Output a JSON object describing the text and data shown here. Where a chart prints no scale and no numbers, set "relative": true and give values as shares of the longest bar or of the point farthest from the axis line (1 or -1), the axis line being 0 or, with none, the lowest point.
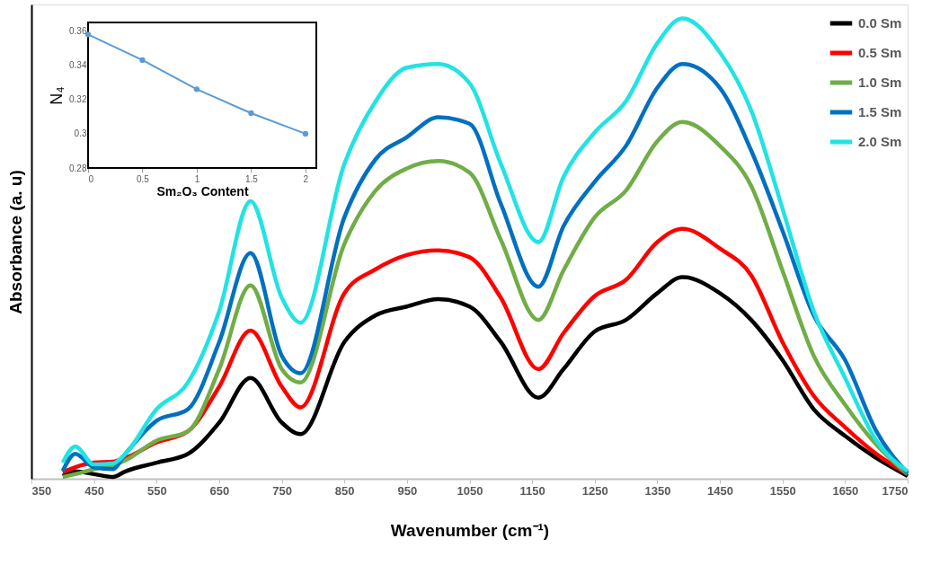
{
  "chart_data": [
    {
      "type": "line",
      "xlabel": "Wavenumber (cm⁻¹)",
      "ylabel": "Absorbance (a. u)",
      "relative": true,
      "legend": "top right",
      "marker": "none",
      "grid": false,
      "x": [
        400,
        420,
        450,
        480,
        500,
        550,
        600,
        650,
        700,
        750,
        780,
        850,
        900,
        950,
        1000,
        1050,
        1100,
        1160,
        1200,
        1250,
        1300,
        1350,
        1390,
        1450,
        1500,
        1550,
        1600,
        1650,
        1700,
        1750
      ],
      "xlim": [
        350,
        1750
      ],
      "xticks": [
        350,
        450,
        550,
        650,
        750,
        850,
        950,
        1050,
        1150,
        1250,
        1350,
        1450,
        1550,
        1650,
        1750
      ],
      "series": [
        {
          "name": "0.0 Sm",
          "color": "#000000",
          "values": [
            0.006,
            0.016,
            0.01,
            0.004,
            0.016,
            0.035,
            0.054,
            0.122,
            0.219,
            0.122,
            0.097,
            0.297,
            0.355,
            0.374,
            0.39,
            0.374,
            0.297,
            0.176,
            0.238,
            0.32,
            0.345,
            0.403,
            0.438,
            0.403,
            0.345,
            0.258,
            0.151,
            0.093,
            0.045,
            0.006
          ]
        },
        {
          "name": "0.5 Sm",
          "color": "#ff0000",
          "values": [
            0.014,
            0.025,
            0.035,
            0.037,
            0.045,
            0.079,
            0.103,
            0.2,
            0.322,
            0.2,
            0.155,
            0.403,
            0.455,
            0.486,
            0.496,
            0.481,
            0.393,
            0.238,
            0.316,
            0.397,
            0.432,
            0.514,
            0.543,
            0.5,
            0.442,
            0.297,
            0.18,
            0.112,
            0.054,
            0.01
          ]
        },
        {
          "name": "1.0 Sm",
          "color": "#70ad47",
          "values": [
            0.004,
            0.01,
            0.021,
            0.029,
            0.04,
            0.083,
            0.103,
            0.238,
            0.42,
            0.238,
            0.209,
            0.51,
            0.626,
            0.674,
            0.69,
            0.665,
            0.519,
            0.345,
            0.452,
            0.568,
            0.626,
            0.733,
            0.775,
            0.723,
            0.636,
            0.452,
            0.267,
            0.161,
            0.074,
            0.01
          ]
        },
        {
          "name": "1.5 Sm",
          "color": "#0070c0",
          "values": [
            0.017,
            0.054,
            0.025,
            0.021,
            0.054,
            0.126,
            0.151,
            0.297,
            0.49,
            0.267,
            0.229,
            0.568,
            0.694,
            0.742,
            0.785,
            0.771,
            0.597,
            0.417,
            0.548,
            0.645,
            0.723,
            0.849,
            0.901,
            0.849,
            0.713,
            0.539,
            0.355,
            0.258,
            0.103,
            0.012
          ]
        },
        {
          "name": "2.0 Sm",
          "color": "#22e3e3",
          "values": [
            0.035,
            0.07,
            0.031,
            0.033,
            0.054,
            0.151,
            0.209,
            0.364,
            0.603,
            0.393,
            0.339,
            0.684,
            0.82,
            0.893,
            0.901,
            0.859,
            0.684,
            0.514,
            0.655,
            0.752,
            0.82,
            0.946,
            1,
            0.926,
            0.8,
            0.587,
            0.364,
            0.219,
            0.083,
            0.016
          ]
        }
      ]
    },
    {
      "type": "line",
      "xlabel": "Sm₂O₃ Content",
      "ylabel": "N₄",
      "marker": "circle",
      "grid": false,
      "x": [
        0,
        0.5,
        1,
        1.5,
        2
      ],
      "xlim": [
        0,
        2.1
      ],
      "xticks": [
        0,
        0.5,
        1,
        1.5,
        2
      ],
      "ylim": [
        0.28,
        0.365
      ],
      "yticks": [
        0.28,
        0.3,
        0.32,
        0.34,
        0.36
      ],
      "series": [
        {
          "color": "#5b9bd5",
          "values": [
            0.358,
            0.343,
            0.326,
            0.312,
            0.3
          ]
        }
      ]
    }
  ]
}
